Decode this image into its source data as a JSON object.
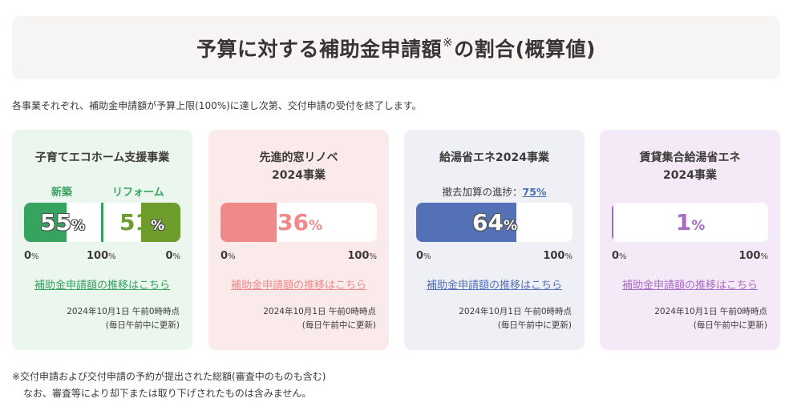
{
  "header": {
    "title_main": "予算に対する補助金申請額",
    "title_mark": "※",
    "title_tail": "の割合(概算値)"
  },
  "intro": "各事業それぞれ、補助金申請額が予算上限(100%)に達し次第、交付申請の受付を終了します。",
  "colors": {
    "green": "#36a35f",
    "olive": "#6e9d2e",
    "pink": "#f08a8a",
    "blue": "#5471b7",
    "purple": "#a86cc6"
  },
  "cards": [
    {
      "title1": "子育てエコホーム支援事業",
      "sub_new": "新築",
      "sub_reform": "リフォーム",
      "new_value": "55",
      "reform_value": "51",
      "pct": "%",
      "new_fraction": 0.55,
      "reform_fraction": 0.51,
      "scale_left": "0",
      "scale_mid": "100",
      "scale_right": "0",
      "scale_unit": "%",
      "link": "補助金申請額の推移はこちら",
      "date": "2024年10月1日 午前0時時点",
      "update": "(毎日午前中に更新)"
    },
    {
      "title1": "先進的窓リノベ",
      "title2": "2024事業",
      "value": "36",
      "pct": "%",
      "fraction": 0.36,
      "scale_left": "0",
      "scale_right": "100",
      "scale_unit": "%",
      "link": "補助金申請額の推移はこちら",
      "date": "2024年10月1日 午前0時時点",
      "update": "(毎日午前中に更新)"
    },
    {
      "title1": "給湯省エネ2024事業",
      "progress_label": "撤去加算の進捗：",
      "progress_value": "75%",
      "value": "64",
      "pct": "%",
      "fraction": 0.64,
      "scale_left": "0",
      "scale_right": "100",
      "scale_unit": "%",
      "link": "補助金申請額の推移はこちら",
      "date": "2024年10月1日 午前0時時点",
      "update": "(毎日午前中に更新)"
    },
    {
      "title1": "賃貸集合給湯省エネ",
      "title2": "2024事業",
      "value": "1",
      "pct": "%",
      "fraction": 0.01,
      "scale_left": "0",
      "scale_right": "100",
      "scale_unit": "%",
      "link": "補助金申請額の推移はこちら",
      "date": "2024年10月1日 午前0時時点",
      "update": "(毎日午前中に更新)"
    }
  ],
  "footnote": {
    "line1": "※交付申請および交付申請の予約が提出された総額(審査中のものも含む)",
    "line2": "なお、審査等により却下または取り下げされたものは含みません。"
  }
}
